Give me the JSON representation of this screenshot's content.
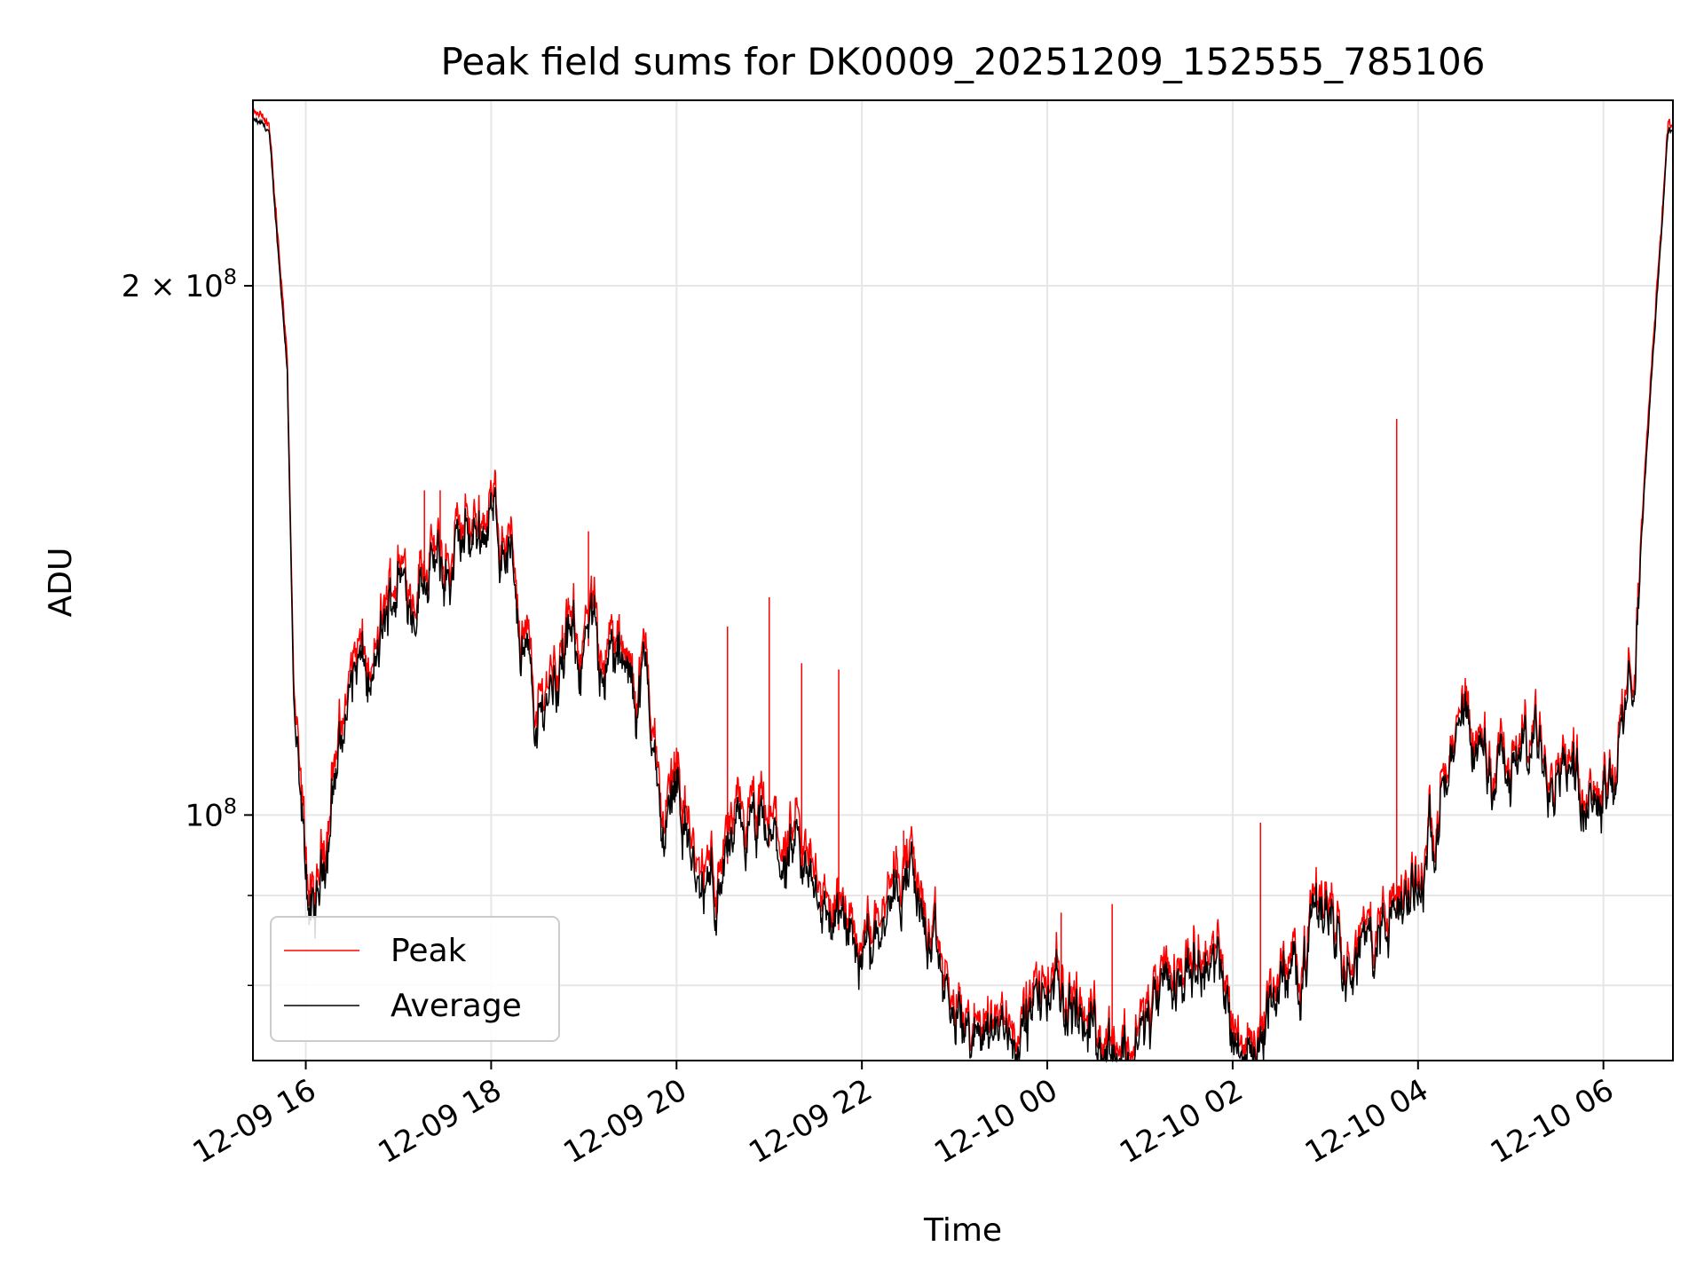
{
  "chart_data": {
    "type": "line",
    "title": "Peak field sums for DK0009_20251209_152555_785106",
    "xlabel": "Time",
    "ylabel": "ADU",
    "yscale": "log",
    "x_units": "hours since 2025-12-09 00:00",
    "xlim": [
      15.43,
      30.75
    ],
    "ylim": [
      72500000,
      255000000
    ],
    "grid": true,
    "legend_position": "lower-left",
    "x_ticks": [
      {
        "value": 16,
        "label": "12-09 16"
      },
      {
        "value": 18,
        "label": "12-09 18"
      },
      {
        "value": 20,
        "label": "12-09 20"
      },
      {
        "value": 22,
        "label": "12-09 22"
      },
      {
        "value": 24,
        "label": "12-10 00"
      },
      {
        "value": 26,
        "label": "12-10 02"
      },
      {
        "value": 28,
        "label": "12-10 04"
      },
      {
        "value": 30,
        "label": "12-10 06"
      }
    ],
    "y_major_ticks": [
      {
        "value": 100000000,
        "base": "10",
        "exp": "8",
        "mantissa": ""
      },
      {
        "value": 200000000,
        "base": "10",
        "exp": "8",
        "mantissa": "2 × "
      }
    ],
    "y_minor_ticks": [
      80000000,
      90000000
    ],
    "series": [
      {
        "name": "Peak",
        "color": "#ff0000",
        "x": [
          15.43,
          15.6,
          15.8,
          15.87,
          15.93,
          16.0,
          16.1,
          16.2,
          16.3,
          16.45,
          16.55,
          16.7,
          16.85,
          17.0,
          17.15,
          17.3,
          17.5,
          17.75,
          18.0,
          18.2,
          18.35,
          18.5,
          18.65,
          18.9,
          19.1,
          19.3,
          19.5,
          19.68,
          19.85,
          20.0,
          20.25,
          20.5,
          20.75,
          21.0,
          21.25,
          21.5,
          21.75,
          22.0,
          22.25,
          22.5,
          22.7,
          22.95,
          23.2,
          23.45,
          23.7,
          24.0,
          24.2,
          24.4,
          24.6,
          24.85,
          25.1,
          25.35,
          25.6,
          25.85,
          26.05,
          26.2,
          26.45,
          26.75,
          27.0,
          27.25,
          27.45,
          27.6,
          27.75,
          28.0,
          28.2,
          28.5,
          28.75,
          29.0,
          29.3,
          29.6,
          29.9,
          30.1,
          30.3,
          30.55,
          30.7
        ],
        "y": [
          249000000,
          246000000,
          182000000,
          118000000,
          102000000,
          94000000,
          86000000,
          97000000,
          106000000,
          118000000,
          124000000,
          118000000,
          128000000,
          140000000,
          135000000,
          142000000,
          137000000,
          146000000,
          150000000,
          143000000,
          128000000,
          114000000,
          122000000,
          126000000,
          127000000,
          125000000,
          118000000,
          122000000,
          98000000,
          109000000,
          90000000,
          95000000,
          99000000,
          98000000,
          95000000,
          93000000,
          87000000,
          84000000,
          92000000,
          96000000,
          86000000,
          78000000,
          75000000,
          77000000,
          76000000,
          80000000,
          79000000,
          78000000,
          76000000,
          74000000,
          77000000,
          80000000,
          86000000,
          82000000,
          76000000,
          73500000,
          80000000,
          84000000,
          91000000,
          86000000,
          84000000,
          87000000,
          88000000,
          92000000,
          103000000,
          110000000,
          108000000,
          108000000,
          111000000,
          109000000,
          105000000,
          106000000,
          118000000,
          190000000,
          247000000
        ]
      },
      {
        "name": "Average",
        "color": "#000000",
        "x": [
          15.43,
          15.6,
          15.8,
          15.87,
          15.93,
          16.0,
          16.1,
          16.2,
          16.3,
          16.45,
          16.55,
          16.7,
          16.85,
          17.0,
          17.15,
          17.3,
          17.5,
          17.75,
          18.0,
          18.2,
          18.35,
          18.5,
          18.65,
          18.9,
          19.1,
          19.3,
          19.5,
          19.68,
          19.85,
          20.0,
          20.25,
          20.5,
          20.75,
          21.0,
          21.25,
          21.5,
          21.75,
          22.0,
          22.25,
          22.5,
          22.7,
          22.95,
          23.2,
          23.45,
          23.7,
          24.0,
          24.2,
          24.4,
          24.6,
          24.85,
          25.1,
          25.35,
          25.6,
          25.85,
          26.05,
          26.2,
          26.45,
          26.75,
          27.0,
          27.25,
          27.45,
          27.6,
          27.75,
          28.0,
          28.2,
          28.5,
          28.75,
          29.0,
          29.3,
          29.6,
          29.9,
          30.1,
          30.3,
          30.55,
          30.7
        ],
        "y": [
          248000000,
          245000000,
          180000000,
          116000000,
          100000000,
          92000000,
          85000000,
          95000000,
          104000000,
          116000000,
          122000000,
          117000000,
          126000000,
          138000000,
          133000000,
          140000000,
          135000000,
          144000000,
          148000000,
          141000000,
          126000000,
          112000000,
          120000000,
          124000000,
          125000000,
          123000000,
          117000000,
          120000000,
          96000000,
          107000000,
          88000000,
          93000000,
          97000000,
          96000000,
          93000000,
          91000000,
          86000000,
          83000000,
          90000000,
          94000000,
          85000000,
          77000000,
          74500000,
          76000000,
          75000000,
          79000000,
          78000000,
          77000000,
          75000000,
          73000000,
          76000000,
          79000000,
          85000000,
          81000000,
          75000000,
          72800000,
          79000000,
          83000000,
          90000000,
          85000000,
          83000000,
          86000000,
          87000000,
          91000000,
          102000000,
          109000000,
          107000000,
          107000000,
          110000000,
          108000000,
          104000000,
          105000000,
          117000000,
          188000000,
          246000000
        ]
      }
    ],
    "spikes": {
      "name": "Peak",
      "x": [
        16.95,
        17.28,
        17.45,
        19.05,
        20.55,
        21.0,
        21.35,
        21.75,
        22.45,
        24.15,
        24.7,
        26.3,
        27.77
      ],
      "y": [
        133000000,
        153000000,
        153000000,
        145000000,
        128000000,
        133000000,
        122000000,
        121000000,
        98000000,
        88000000,
        89000000,
        99000000,
        168000000
      ]
    },
    "legend": [
      {
        "label": "Peak",
        "color": "#ff0000"
      },
      {
        "label": "Average",
        "color": "#000000"
      }
    ]
  }
}
